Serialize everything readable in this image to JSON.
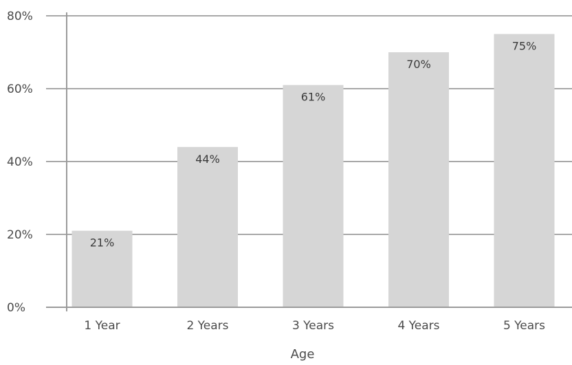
{
  "chart_data": {
    "type": "bar",
    "title": "",
    "xlabel": "Age",
    "ylabel": "",
    "categories": [
      "1 Year",
      "2 Years",
      "3 Years",
      "4 Years",
      "5 Years"
    ],
    "values": [
      21,
      44,
      61,
      70,
      75
    ],
    "data_labels": [
      "21%",
      "44%",
      "61%",
      "70%",
      "75%"
    ],
    "ylim": [
      0,
      80
    ],
    "yticks": [
      0,
      20,
      40,
      60,
      80
    ],
    "ytick_labels": [
      "0%",
      "20%",
      "40%",
      "60%",
      "80%"
    ],
    "grid": true,
    "legend": "none",
    "colors": {
      "bar": "#d6d6d6",
      "grid": "#a8a8a8",
      "axis": "#9a9a9a"
    }
  }
}
